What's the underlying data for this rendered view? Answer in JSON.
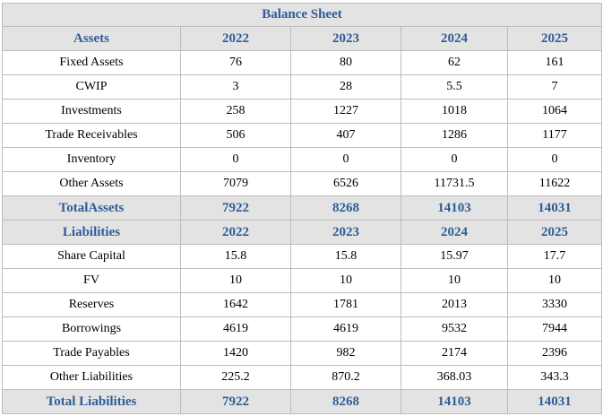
{
  "title": "Balance Sheet",
  "assets": {
    "header": [
      "Assets",
      "2022",
      "2023",
      "2024",
      "2025"
    ],
    "rows": [
      [
        "Fixed Assets",
        "76",
        "80",
        "62",
        "161"
      ],
      [
        "CWIP",
        "3",
        "28",
        "5.5",
        "7"
      ],
      [
        "Investments",
        "258",
        "1227",
        "1018",
        "1064"
      ],
      [
        "Trade Receivables",
        "506",
        "407",
        "1286",
        "1177"
      ],
      [
        "Inventory",
        "0",
        "0",
        "0",
        "0"
      ],
      [
        "Other Assets",
        "7079",
        "6526",
        "11731.5",
        "11622"
      ]
    ],
    "total": [
      "TotalAssets",
      "7922",
      "8268",
      "14103",
      "14031"
    ]
  },
  "liabilities": {
    "header": [
      "Liabilities",
      "2022",
      "2023",
      "2024",
      "2025"
    ],
    "rows": [
      [
        "Share Capital",
        "15.8",
        "15.8",
        "15.97",
        "17.7"
      ],
      [
        "FV",
        "10",
        "10",
        "10",
        "10"
      ],
      [
        "Reserves",
        "1642",
        "1781",
        "2013",
        "3330"
      ],
      [
        "Borrowings",
        "4619",
        "4619",
        "9532",
        "7944"
      ],
      [
        "Trade Payables",
        "1420",
        "982",
        "2174",
        "2396"
      ],
      [
        "Other Liabilities",
        "225.2",
        "870.2",
        "368.03",
        "343.3"
      ]
    ],
    "total": [
      "Total Liabilities",
      "7922",
      "8268",
      "14103",
      "14031"
    ]
  }
}
